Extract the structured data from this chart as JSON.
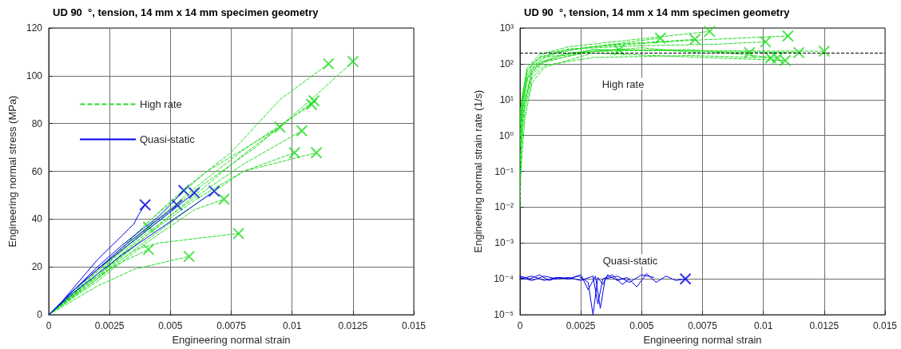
{
  "chart_data": [
    {
      "type": "line",
      "title": "UD 90  °, tension, 14 mm x 14 mm specimen geometry",
      "xlabel": "Engineering normal strain",
      "ylabel": "Engineering normal stress (MPa)",
      "xlim": [
        0,
        0.015
      ],
      "xticks": [
        0,
        0.0025,
        0.005,
        0.0075,
        0.01,
        0.0125,
        0.015
      ],
      "ylim": [
        0,
        120
      ],
      "yticks": [
        0,
        20,
        40,
        60,
        80,
        100,
        120
      ],
      "grid": true,
      "legend": "top left",
      "marker": "none",
      "series": [
        {
          "name": "High rate",
          "color": "#22dd22",
          "line_style": "dashed",
          "x": [
            0,
            0.002,
            0.004,
            0.0055,
            0.0075,
            0.0095,
            0.0115
          ],
          "values": [
            0,
            17,
            38,
            52,
            68,
            90,
            105
          ]
        },
        {
          "color": "#22dd22",
          "line_style": "dashed",
          "x": [
            0,
            0.002,
            0.004,
            0.006,
            0.0085,
            0.011,
            0.0125
          ],
          "values": [
            0,
            16,
            35,
            52,
            70,
            92,
            106
          ]
        },
        {
          "color": "#22dd22",
          "line_style": "dashed",
          "x": [
            0,
            0.002,
            0.004,
            0.006,
            0.008,
            0.0108
          ],
          "values": [
            0,
            17,
            36,
            53,
            69,
            88
          ]
        },
        {
          "color": "#22dd22",
          "line_style": "dashed",
          "x": [
            0,
            0.002,
            0.004,
            0.006,
            0.008,
            0.0109
          ],
          "values": [
            0,
            15,
            33,
            50,
            67,
            89.5
          ]
        },
        {
          "color": "#22dd22",
          "line_style": "dashed",
          "x": [
            0,
            0.002,
            0.004,
            0.0065,
            0.0095
          ],
          "values": [
            0,
            18,
            38,
            60,
            78.5
          ]
        },
        {
          "color": "#22dd22",
          "line_style": "dashed",
          "x": [
            0,
            0.002,
            0.004,
            0.006,
            0.008,
            0.0104
          ],
          "values": [
            0,
            16,
            34,
            49,
            63,
            77
          ]
        },
        {
          "color": "#22dd22",
          "line_style": "dashed",
          "x": [
            0,
            0.002,
            0.004,
            0.006,
            0.008,
            0.0101
          ],
          "values": [
            0,
            16,
            33,
            48,
            60,
            67.8
          ]
        },
        {
          "color": "#22dd22",
          "line_style": "dashed",
          "x": [
            0,
            0.002,
            0.004,
            0.006,
            0.008,
            0.011
          ],
          "values": [
            0,
            15,
            31,
            46,
            60,
            67.8
          ]
        },
        {
          "color": "#22dd22",
          "line_style": "dashed",
          "x": [
            0,
            0.002,
            0.004,
            0.006,
            0.0072
          ],
          "values": [
            0,
            14,
            30,
            44,
            48.3
          ]
        },
        {
          "color": "#22dd22",
          "line_style": "dashed",
          "x": [
            0,
            0.002,
            0.0035,
            0.0045,
            0.0078
          ],
          "values": [
            0,
            15,
            27,
            30,
            34
          ]
        },
        {
          "color": "#22dd22",
          "line_style": "dashed",
          "x": [
            0,
            0.0015,
            0.003,
            0.0041
          ],
          "values": [
            0,
            13,
            22,
            27.3
          ]
        },
        {
          "color": "#22dd22",
          "line_style": "dashed",
          "x": [
            0,
            0.002,
            0.0035,
            0.00577
          ],
          "values": [
            0,
            12,
            19,
            24.4
          ]
        },
        {
          "color": "#22dd22",
          "line_style": "dashed",
          "x": [
            0,
            0.0015,
            0.003,
            0.0041
          ],
          "values": [
            0,
            14,
            27,
            36.7
          ]
        },
        {
          "name": "Quasi-static",
          "color": "#0000ee",
          "line_style": "solid",
          "x": [
            0,
            0.0005,
            0.001,
            0.0015,
            0.002,
            0.0025,
            0.003,
            0.0033,
            0.0035,
            0.0037,
            0.00396
          ],
          "values": [
            0,
            5,
            11,
            17,
            23,
            28,
            33,
            36,
            38,
            42,
            46
          ]
        },
        {
          "color": "#0000ee",
          "line_style": "solid",
          "x": [
            0,
            0.001,
            0.002,
            0.003,
            0.004,
            0.0045,
            0.005,
            0.00555
          ],
          "values": [
            0,
            10,
            20,
            29,
            37,
            41,
            46,
            52
          ]
        },
        {
          "color": "#0000ee",
          "line_style": "solid",
          "x": [
            0,
            0.001,
            0.002,
            0.003,
            0.004,
            0.005,
            0.00598
          ],
          "values": [
            0,
            10,
            19,
            27,
            35,
            43,
            51
          ]
        },
        {
          "color": "#0000ee",
          "line_style": "solid",
          "x": [
            0,
            0.001,
            0.002,
            0.003,
            0.004,
            0.005,
            0.006,
            0.0068
          ],
          "values": [
            0,
            9,
            17,
            25,
            32,
            39,
            46,
            51.7
          ]
        },
        {
          "color": "#0000ee",
          "line_style": "solid",
          "x": [
            0,
            0.001,
            0.002,
            0.003,
            0.004,
            0.00527
          ],
          "values": [
            0,
            10,
            19,
            28,
            36,
            46
          ]
        },
        {
          "type": "scatter",
          "marker": "cross",
          "color": "#22dd22",
          "x": [
            0.0115,
            0.0125,
            0.0108,
            0.0109,
            0.0095,
            0.0104,
            0.0101,
            0.011,
            0.0072,
            0.0078,
            0.0041,
            0.00577,
            0.0041
          ],
          "values": [
            105,
            106,
            88,
            89.5,
            78.5,
            77,
            67.8,
            67.8,
            48.3,
            34,
            27.3,
            24.4,
            36.7
          ]
        },
        {
          "type": "scatter",
          "marker": "cross",
          "color": "#0000ee",
          "x": [
            0.00396,
            0.00555,
            0.00598,
            0.0068,
            0.00527
          ],
          "values": [
            46,
            52,
            51,
            51.7,
            46
          ]
        }
      ]
    },
    {
      "type": "line",
      "title": "UD 90  °, tension, 14 mm x 14 mm specimen geometry",
      "xlabel": "Engineering normal strain",
      "ylabel": "Engineering normal strain rate (1/s)",
      "xlim": [
        0,
        0.015
      ],
      "xticks": [
        0,
        0.0025,
        0.005,
        0.0075,
        0.01,
        0.0125,
        0.015
      ],
      "ylim": [
        1e-05,
        1000
      ],
      "log": "y",
      "yticks": [
        {
          "value": 1e-05,
          "label": "10⁻⁵"
        },
        {
          "value": 0.0001,
          "label": "10⁻⁴"
        },
        {
          "value": 0.001,
          "label": "10⁻³"
        },
        {
          "value": 0.01,
          "label": "10⁻²"
        },
        {
          "value": 0.1,
          "label": "10⁻¹"
        },
        {
          "value": 1,
          "label": "10⁰"
        },
        {
          "value": 10,
          "label": "10¹"
        },
        {
          "value": 100,
          "label": "10²"
        },
        {
          "value": 1000,
          "label": "10³"
        }
      ],
      "grid": true,
      "marker": "none",
      "ref_lines": [
        {
          "axis": "y",
          "value": 200,
          "color": "#000000",
          "line_style": "dashed"
        }
      ],
      "annotations": [
        "High rate",
        "Quasi-static"
      ],
      "series": [
        {
          "color": "#22dd22",
          "line_style": "dashed",
          "x": [
            0,
            0.0001,
            0.0003,
            0.0008,
            0.0015,
            0.003,
            0.00407
          ],
          "values": [
            0.01,
            5,
            40,
            100,
            160,
            220,
            243
          ]
        },
        {
          "color": "#22dd22",
          "line_style": "dashed",
          "x": [
            0,
            0.0001,
            0.0003,
            0.0008,
            0.0015,
            0.003,
            0.00577
          ],
          "values": [
            0.1,
            8,
            50,
            130,
            200,
            300,
            520
          ]
        },
        {
          "color": "#22dd22",
          "line_style": "dashed",
          "x": [
            0,
            0.0001,
            0.0003,
            0.0008,
            0.002,
            0.004,
            0.00719
          ],
          "values": [
            1,
            10,
            60,
            150,
            250,
            350,
            480
          ]
        },
        {
          "color": "#22dd22",
          "line_style": "dashed",
          "x": [
            0,
            0.0001,
            0.0003,
            0.0008,
            0.002,
            0.005,
            0.00779
          ],
          "values": [
            3,
            15,
            80,
            180,
            300,
            500,
            800
          ]
        },
        {
          "color": "#22dd22",
          "line_style": "dashed",
          "x": [
            0,
            0.0001,
            0.0003,
            0.0008,
            0.002,
            0.005,
            0.0075,
            0.00943
          ],
          "values": [
            0.5,
            6,
            40,
            110,
            200,
            280,
            200,
            205
          ]
        },
        {
          "color": "#22dd22",
          "line_style": "dashed",
          "x": [
            0,
            0.0001,
            0.0003,
            0.0008,
            0.002,
            0.005,
            0.008,
            0.01009
          ],
          "values": [
            2,
            12,
            70,
            150,
            260,
            320,
            350,
            410
          ]
        },
        {
          "color": "#22dd22",
          "line_style": "dashed",
          "x": [
            0,
            0.0002,
            0.0005,
            0.001,
            0.003,
            0.007,
            0.01101
          ],
          "values": [
            5,
            20,
            100,
            200,
            300,
            450,
            600
          ]
        },
        {
          "color": "#22dd22",
          "line_style": "dashed",
          "x": [
            0,
            0.0002,
            0.0005,
            0.001,
            0.003,
            0.007,
            0.0103
          ],
          "values": [
            0.2,
            5,
            40,
            90,
            150,
            170,
            146
          ]
        },
        {
          "color": "#22dd22",
          "line_style": "dashed",
          "x": [
            0,
            0.0002,
            0.0005,
            0.001,
            0.003,
            0.007,
            0.01058
          ],
          "values": [
            1,
            8,
            60,
            120,
            220,
            250,
            146
          ]
        },
        {
          "color": "#22dd22",
          "line_style": "dashed",
          "x": [
            0,
            0.0002,
            0.0005,
            0.001,
            0.003,
            0.0075,
            0.0109
          ],
          "values": [
            0.05,
            3,
            30,
            80,
            200,
            150,
            124
          ]
        },
        {
          "color": "#22dd22",
          "line_style": "dashed",
          "x": [
            0,
            0.0002,
            0.0005,
            0.001,
            0.003,
            0.008,
            0.01146
          ],
          "values": [
            0.5,
            8,
            50,
            110,
            250,
            220,
            205
          ]
        },
        {
          "color": "#22dd22",
          "line_style": "dashed",
          "x": [
            0,
            0.0002,
            0.0005,
            0.001,
            0.003,
            0.008,
            0.0125
          ],
          "values": [
            2,
            10,
            70,
            150,
            250,
            230,
            224
          ]
        },
        {
          "color": "#0000ee",
          "line_style": "solid",
          "x": [
            0,
            0.0004,
            0.0008,
            0.0012,
            0.0016,
            0.002,
            0.0024,
            0.0028,
            0.003,
            0.0032,
            0.0034,
            0.0036,
            0.004,
            0.0044,
            0.0048,
            0.0052,
            0.0056,
            0.006,
            0.0064,
            0.0068
          ],
          "values": [
            0.00012,
            0.0001,
            0.00013,
            9e-05,
            0.00011,
            0.0001,
            0.00012,
            8e-05,
            1e-05,
            0.00011,
            7e-05,
            0.00013,
            9e-05,
            0.00011,
            6e-05,
            0.00014,
            8e-05,
            0.00012,
            9e-05,
            0.0001
          ]
        },
        {
          "color": "#0000ee",
          "line_style": "solid",
          "x": [
            0,
            0.0005,
            0.001,
            0.0015,
            0.002,
            0.0025,
            0.0028,
            0.0031,
            0.0033,
            0.0035,
            0.004,
            0.0045,
            0.005,
            0.0055
          ],
          "values": [
            0.0001,
            0.00012,
            9e-05,
            0.00011,
            0.0001,
            0.00013,
            5e-05,
            0.00012,
            1.5e-05,
            0.0001,
            0.00012,
            8e-05,
            0.00013,
            0.00011
          ]
        },
        {
          "color": "#0000ee",
          "line_style": "solid",
          "x": [
            0,
            0.0005,
            0.001,
            0.0015,
            0.002,
            0.0025,
            0.003,
            0.0032,
            0.0034,
            0.0038,
            0.0042,
            0.0045
          ],
          "values": [
            0.00011,
            9e-05,
            0.00012,
            0.0001,
            0.00011,
            9e-05,
            0.00012,
            2e-05,
            0.0001,
            0.00013,
            7e-05,
            0.0001
          ]
        },
        {
          "type": "scatter",
          "marker": "cross",
          "color": "#22dd22",
          "x": [
            0.00407,
            0.00577,
            0.00719,
            0.00779,
            0.00943,
            0.01009,
            0.01101,
            0.0103,
            0.01058,
            0.0109,
            0.01146,
            0.0125
          ],
          "values": [
            243,
            520,
            480,
            800,
            205,
            410,
            600,
            146,
            146,
            124,
            205,
            224
          ]
        },
        {
          "type": "scatter",
          "marker": "cross",
          "color": "#0000ee",
          "x": [
            0.0068
          ],
          "values": [
            0.0001
          ]
        }
      ]
    }
  ]
}
